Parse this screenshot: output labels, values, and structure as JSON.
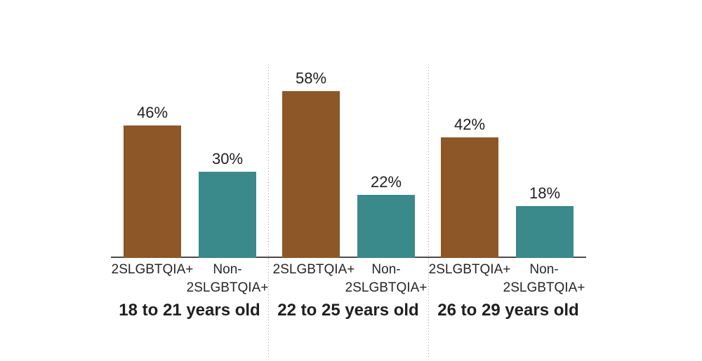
{
  "chart_data": {
    "type": "bar",
    "unit": "%",
    "grid": false,
    "legend_position": "none",
    "ylim": [
      0,
      60
    ],
    "colors": {
      "lgbtq": "#8D5727",
      "non_lgbtq": "#3A898B"
    },
    "groups": [
      {
        "title": "18 to 21 years old",
        "bars": [
          {
            "label": "2SLGBTQIA+",
            "value": 46,
            "value_label": "46%",
            "color_key": "lgbtq"
          },
          {
            "label": "Non-2SLGBTQIA+",
            "value": 30,
            "value_label": "30%",
            "color_key": "non_lgbtq"
          }
        ]
      },
      {
        "title": "22 to 25 years old",
        "bars": [
          {
            "label": "2SLGBTQIA+",
            "value": 58,
            "value_label": "58%",
            "color_key": "lgbtq"
          },
          {
            "label": "Non-2SLGBTQIA+",
            "value": 22,
            "value_label": "22%",
            "color_key": "non_lgbtq"
          }
        ]
      },
      {
        "title": "26 to 29 years old",
        "bars": [
          {
            "label": "2SLGBTQIA+",
            "value": 42,
            "value_label": "42%",
            "color_key": "lgbtq"
          },
          {
            "label": "Non-2SLGBTQIA+",
            "value": 18,
            "value_label": "18%",
            "color_key": "non_lgbtq"
          }
        ]
      }
    ]
  }
}
